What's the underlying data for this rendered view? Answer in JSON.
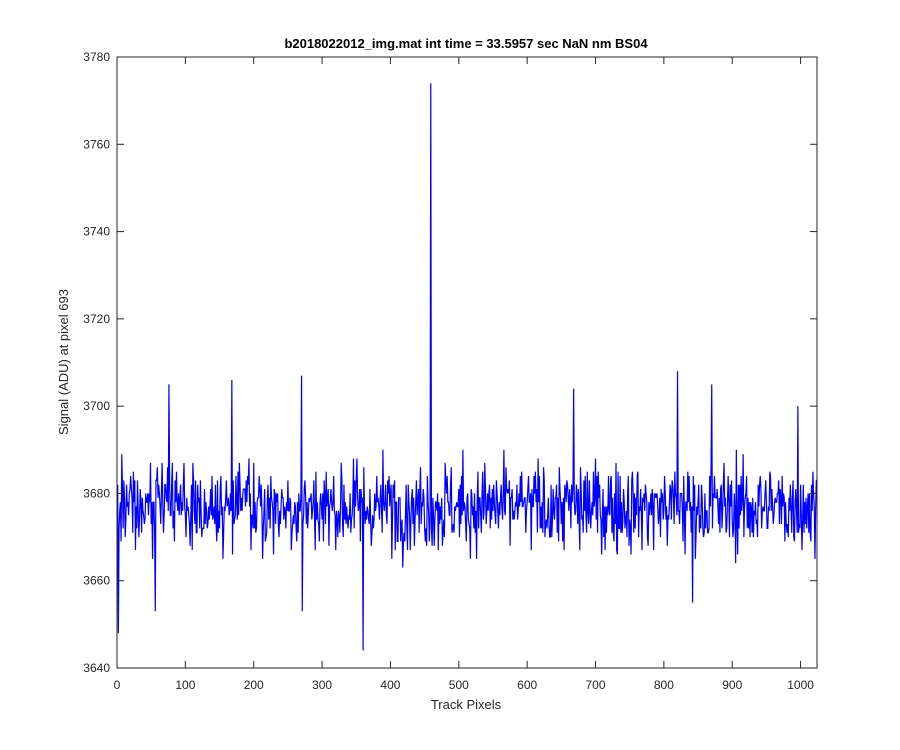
{
  "chart_data": {
    "type": "line",
    "title": "b2018022012_img.mat int time = 33.5957 sec  NaN nm BS04",
    "xlabel": "Track Pixels",
    "ylabel": "Signal (ADU) at pixel 693",
    "xlim": [
      0,
      1024
    ],
    "ylim": [
      3640,
      3780
    ],
    "xticks": [
      0,
      100,
      200,
      300,
      400,
      500,
      600,
      700,
      800,
      900,
      1000
    ],
    "yticks": [
      3640,
      3660,
      3680,
      3700,
      3720,
      3740,
      3760,
      3780
    ],
    "grid": false,
    "line_color": "#0000ff",
    "series": [
      {
        "x_start": 1,
        "x_step": 1,
        "noise_mean": 3677,
        "noise_sd": 6.5,
        "notable_points": [
          {
            "x": 2,
            "y": 3648
          },
          {
            "x": 7,
            "y": 3689
          },
          {
            "x": 56,
            "y": 3653
          },
          {
            "x": 76,
            "y": 3705
          },
          {
            "x": 168,
            "y": 3706
          },
          {
            "x": 270,
            "y": 3707
          },
          {
            "x": 271,
            "y": 3653
          },
          {
            "x": 360,
            "y": 3644
          },
          {
            "x": 459,
            "y": 3774
          },
          {
            "x": 668,
            "y": 3704
          },
          {
            "x": 820,
            "y": 3708
          },
          {
            "x": 842,
            "y": 3655
          },
          {
            "x": 870,
            "y": 3705
          },
          {
            "x": 996,
            "y": 3700
          }
        ]
      }
    ]
  }
}
